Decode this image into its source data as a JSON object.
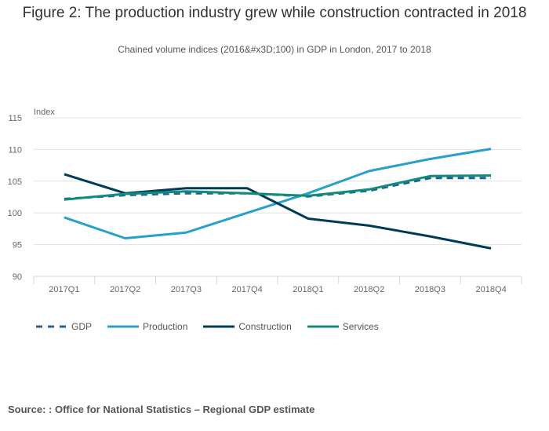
{
  "title": "Figure 2: The production industry grew while construction contracted in 2018",
  "subtitle": "Chained volume indices (2016&#x3D;100) in GDP in London, 2017 to 2018",
  "source": "Source: : Office for National Statistics – Regional GDP estimate",
  "chart_data": {
    "type": "line",
    "title": "Figure 2: The production industry grew while construction contracted in 2018",
    "subtitle": "Chained volume indices (2016&#x3D;100) in GDP in London, 2017 to 2018",
    "xlabel": "",
    "ylabel": "Index",
    "ylim": [
      90,
      115
    ],
    "yticks": [
      90,
      95,
      100,
      105,
      110,
      115
    ],
    "grid": true,
    "legend_position": "bottom-left",
    "categories": [
      "2017Q1",
      "2017Q2",
      "2017Q3",
      "2017Q4",
      "2018Q1",
      "2018Q2",
      "2018Q3",
      "2018Q4"
    ],
    "series": [
      {
        "name": "GDP",
        "color": "#206095",
        "dashed": true,
        "values": [
          102.2,
          102.8,
          103.1,
          103.1,
          102.6,
          103.5,
          105.5,
          105.5
        ]
      },
      {
        "name": "Production",
        "color": "#27a0cc",
        "dashed": false,
        "values": [
          99.3,
          96.0,
          96.9,
          100.0,
          103.1,
          106.6,
          108.5,
          110.1
        ]
      },
      {
        "name": "Construction",
        "color": "#003c57",
        "dashed": false,
        "values": [
          106.1,
          103.1,
          103.9,
          103.9,
          99.1,
          98.0,
          96.3,
          94.4
        ]
      },
      {
        "name": "Services",
        "color": "#118c7b",
        "dashed": false,
        "values": [
          102.1,
          103.0,
          103.4,
          103.1,
          102.7,
          103.7,
          105.8,
          105.9
        ]
      }
    ]
  }
}
